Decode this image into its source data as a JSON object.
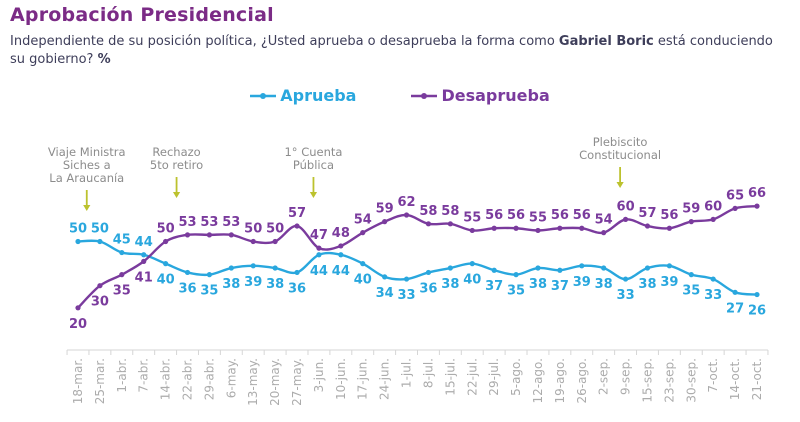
{
  "header": {
    "title": "Aprobación Presidencial",
    "subtitle_parts": {
      "lead": "Independiente de su posición política, ¿Usted aprueba o desaprueba la forma como ",
      "bold1": "Gabriel Boric",
      "mid": " está conduciendo su gobierno? ",
      "bold2": "%"
    }
  },
  "chart_data": {
    "type": "line",
    "title": "Aprobación Presidencial",
    "categories": [
      "18-mar.",
      "25-mar.",
      "1-abr.",
      "7-abr.",
      "14-abr.",
      "22-abr.",
      "29-abr.",
      "6-may.",
      "13-may.",
      "20-may.",
      "27-may.",
      "3-jun.",
      "10-jun.",
      "17-jun.",
      "24-jun.",
      "1-jul.",
      "8-jul.",
      "15-jul.",
      "22-jul.",
      "29-jul.",
      "5-ago.",
      "12-ago.",
      "19-ago.",
      "26-ago.",
      "2-sep.",
      "9-sep.",
      "15-sep.",
      "23-sep.",
      "30-sep.",
      "7-oct.",
      "14-oct.",
      "21-oct."
    ],
    "series": [
      {
        "name": "Aprueba",
        "color": "#29A7DE",
        "values": [
          50,
          50,
          45,
          44,
          40,
          36,
          35,
          38,
          39,
          38,
          36,
          44,
          44,
          40,
          34,
          33,
          36,
          38,
          40,
          37,
          35,
          38,
          37,
          39,
          38,
          33,
          38,
          39,
          35,
          33,
          27,
          26
        ]
      },
      {
        "name": "Desaprueba",
        "color": "#7A3B9D",
        "values": [
          20,
          30,
          35,
          41,
          50,
          53,
          53,
          53,
          50,
          50,
          57,
          47,
          48,
          54,
          59,
          62,
          58,
          58,
          55,
          56,
          56,
          55,
          56,
          56,
          54,
          60,
          57,
          56,
          59,
          60,
          65,
          66
        ]
      }
    ],
    "annotations": [
      {
        "lines": [
          "Viaje Ministra",
          "Siches a",
          "La Araucanía"
        ],
        "x_index": 0.4,
        "top": 146
      },
      {
        "lines": [
          "Rechazo",
          "5to retiro"
        ],
        "x_index": 4.5,
        "top": 146
      },
      {
        "lines": [
          "1° Cuenta",
          "Pública"
        ],
        "x_index": 10.75,
        "top": 146
      },
      {
        "lines": [
          "Plebiscito",
          "Constitucional"
        ],
        "x_index": 24.75,
        "top": 136
      }
    ],
    "annotation_arrow_color": "#BCC22E",
    "value_labels": true,
    "grid": false,
    "ylim": [
      15,
      70
    ],
    "legend_position": "top-center",
    "x_axis": {
      "label_rotation": -90,
      "label_color": "#ACACAC",
      "axis_color": "#D6D6D6"
    }
  }
}
